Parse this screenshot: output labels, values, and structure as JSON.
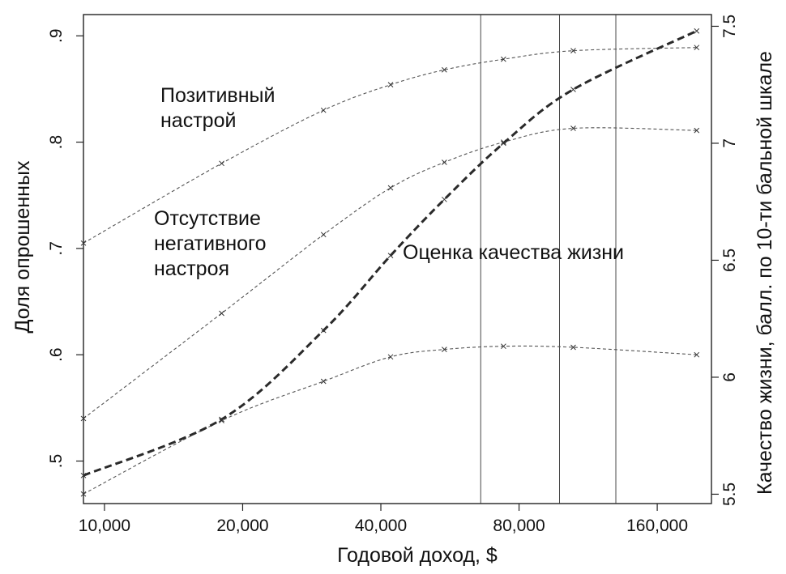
{
  "chart_data": {
    "type": "line",
    "xlabel": "Годовой доход, $",
    "ylabel_left": "Доля опрошенных",
    "ylabel_right": "Качество жизни, балл. по 10-ти бальной шкале",
    "x_scale": "log",
    "x_ticks": [
      10000,
      20000,
      40000,
      80000,
      160000
    ],
    "x_tick_labels": [
      "10,000",
      "20,000",
      "40,000",
      "80,000",
      "160,000"
    ],
    "xlim": [
      9000,
      210000
    ],
    "left_axis": {
      "ylim": [
        0.46,
        0.92
      ],
      "ticks": [
        0.5,
        0.6,
        0.7,
        0.8,
        0.9
      ],
      "tick_labels": [
        ".5",
        ".6",
        ".7",
        ".8",
        ".9"
      ]
    },
    "right_axis": {
      "ylim": [
        5.46,
        7.55
      ],
      "ticks": [
        5.5,
        6,
        6.5,
        7,
        7.5
      ],
      "tick_labels": [
        "5.5",
        "6",
        "6.5",
        "7",
        "7.5"
      ]
    },
    "vlines": [
      66000,
      98000,
      130000
    ],
    "grid": false,
    "series": [
      {
        "name": "Позитивный настрой",
        "axis": "left",
        "style": "dotted",
        "x": [
          9000,
          18000,
          30000,
          42000,
          55000,
          74000,
          105000,
          195000
        ],
        "y": [
          0.705,
          0.78,
          0.83,
          0.854,
          0.868,
          0.878,
          0.886,
          0.889
        ]
      },
      {
        "name": "Отсутствие негативного настроя",
        "axis": "left",
        "style": "dotted",
        "x": [
          9000,
          18000,
          30000,
          42000,
          55000,
          74000,
          105000,
          195000
        ],
        "y": [
          0.54,
          0.639,
          0.713,
          0.757,
          0.781,
          0.8,
          0.813,
          0.811
        ]
      },
      {
        "name": "",
        "axis": "left",
        "style": "dotted",
        "x": [
          9000,
          18000,
          30000,
          42000,
          55000,
          74000,
          105000,
          195000
        ],
        "y": [
          0.469,
          0.538,
          0.575,
          0.598,
          0.605,
          0.608,
          0.607,
          0.6
        ]
      },
      {
        "name": "Оценка качества жизни",
        "axis": "right",
        "style": "dashed",
        "x": [
          9000,
          18000,
          30000,
          42000,
          55000,
          74000,
          105000,
          195000
        ],
        "y": [
          5.58,
          5.82,
          6.2,
          6.52,
          6.76,
          7.0,
          7.23,
          7.48
        ]
      }
    ],
    "annotations": [
      {
        "lines": [
          "Позитивный",
          "настрой"
        ]
      },
      {
        "lines": [
          "Отсутствие",
          "негативного",
          "настроя"
        ]
      },
      {
        "lines": [
          "Оценка качества жизни"
        ]
      }
    ]
  }
}
